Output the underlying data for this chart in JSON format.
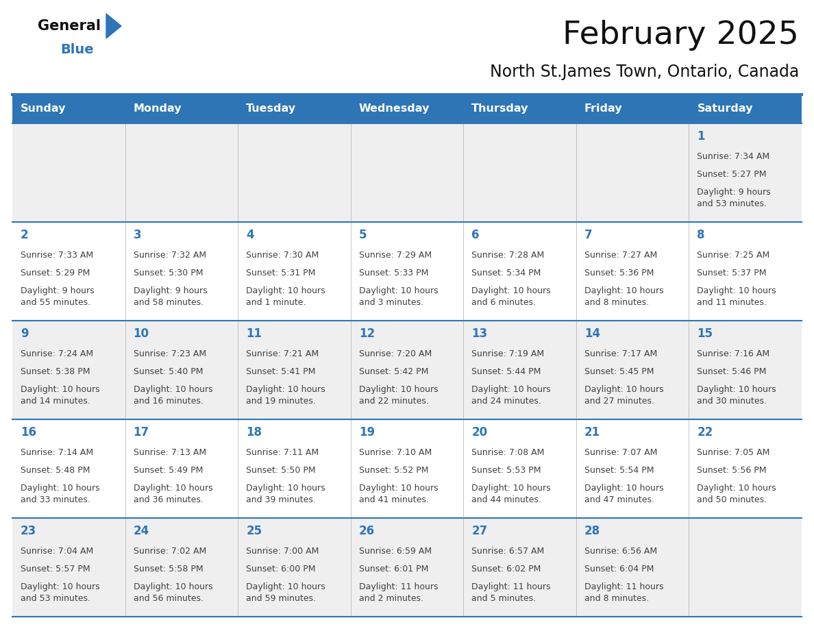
{
  "title": "February 2025",
  "subtitle": "North St.James Town, Ontario, Canada",
  "header_bg": "#2E75B6",
  "header_text_color": "#FFFFFF",
  "cell_bg_odd": "#EFEFEF",
  "cell_bg_even": "#FFFFFF",
  "text_color": "#404040",
  "day_number_color": "#2E75B6",
  "border_color": "#2E75B6",
  "days_of_week": [
    "Sunday",
    "Monday",
    "Tuesday",
    "Wednesday",
    "Thursday",
    "Friday",
    "Saturday"
  ],
  "fig_width": 11.88,
  "fig_height": 9.18,
  "weeks": [
    [
      {
        "day": "",
        "sunrise": "",
        "sunset": "",
        "daylight": ""
      },
      {
        "day": "",
        "sunrise": "",
        "sunset": "",
        "daylight": ""
      },
      {
        "day": "",
        "sunrise": "",
        "sunset": "",
        "daylight": ""
      },
      {
        "day": "",
        "sunrise": "",
        "sunset": "",
        "daylight": ""
      },
      {
        "day": "",
        "sunrise": "",
        "sunset": "",
        "daylight": ""
      },
      {
        "day": "",
        "sunrise": "",
        "sunset": "",
        "daylight": ""
      },
      {
        "day": "1",
        "sunrise": "Sunrise: 7:34 AM",
        "sunset": "Sunset: 5:27 PM",
        "daylight": "Daylight: 9 hours\nand 53 minutes."
      }
    ],
    [
      {
        "day": "2",
        "sunrise": "Sunrise: 7:33 AM",
        "sunset": "Sunset: 5:29 PM",
        "daylight": "Daylight: 9 hours\nand 55 minutes."
      },
      {
        "day": "3",
        "sunrise": "Sunrise: 7:32 AM",
        "sunset": "Sunset: 5:30 PM",
        "daylight": "Daylight: 9 hours\nand 58 minutes."
      },
      {
        "day": "4",
        "sunrise": "Sunrise: 7:30 AM",
        "sunset": "Sunset: 5:31 PM",
        "daylight": "Daylight: 10 hours\nand 1 minute."
      },
      {
        "day": "5",
        "sunrise": "Sunrise: 7:29 AM",
        "sunset": "Sunset: 5:33 PM",
        "daylight": "Daylight: 10 hours\nand 3 minutes."
      },
      {
        "day": "6",
        "sunrise": "Sunrise: 7:28 AM",
        "sunset": "Sunset: 5:34 PM",
        "daylight": "Daylight: 10 hours\nand 6 minutes."
      },
      {
        "day": "7",
        "sunrise": "Sunrise: 7:27 AM",
        "sunset": "Sunset: 5:36 PM",
        "daylight": "Daylight: 10 hours\nand 8 minutes."
      },
      {
        "day": "8",
        "sunrise": "Sunrise: 7:25 AM",
        "sunset": "Sunset: 5:37 PM",
        "daylight": "Daylight: 10 hours\nand 11 minutes."
      }
    ],
    [
      {
        "day": "9",
        "sunrise": "Sunrise: 7:24 AM",
        "sunset": "Sunset: 5:38 PM",
        "daylight": "Daylight: 10 hours\nand 14 minutes."
      },
      {
        "day": "10",
        "sunrise": "Sunrise: 7:23 AM",
        "sunset": "Sunset: 5:40 PM",
        "daylight": "Daylight: 10 hours\nand 16 minutes."
      },
      {
        "day": "11",
        "sunrise": "Sunrise: 7:21 AM",
        "sunset": "Sunset: 5:41 PM",
        "daylight": "Daylight: 10 hours\nand 19 minutes."
      },
      {
        "day": "12",
        "sunrise": "Sunrise: 7:20 AM",
        "sunset": "Sunset: 5:42 PM",
        "daylight": "Daylight: 10 hours\nand 22 minutes."
      },
      {
        "day": "13",
        "sunrise": "Sunrise: 7:19 AM",
        "sunset": "Sunset: 5:44 PM",
        "daylight": "Daylight: 10 hours\nand 24 minutes."
      },
      {
        "day": "14",
        "sunrise": "Sunrise: 7:17 AM",
        "sunset": "Sunset: 5:45 PM",
        "daylight": "Daylight: 10 hours\nand 27 minutes."
      },
      {
        "day": "15",
        "sunrise": "Sunrise: 7:16 AM",
        "sunset": "Sunset: 5:46 PM",
        "daylight": "Daylight: 10 hours\nand 30 minutes."
      }
    ],
    [
      {
        "day": "16",
        "sunrise": "Sunrise: 7:14 AM",
        "sunset": "Sunset: 5:48 PM",
        "daylight": "Daylight: 10 hours\nand 33 minutes."
      },
      {
        "day": "17",
        "sunrise": "Sunrise: 7:13 AM",
        "sunset": "Sunset: 5:49 PM",
        "daylight": "Daylight: 10 hours\nand 36 minutes."
      },
      {
        "day": "18",
        "sunrise": "Sunrise: 7:11 AM",
        "sunset": "Sunset: 5:50 PM",
        "daylight": "Daylight: 10 hours\nand 39 minutes."
      },
      {
        "day": "19",
        "sunrise": "Sunrise: 7:10 AM",
        "sunset": "Sunset: 5:52 PM",
        "daylight": "Daylight: 10 hours\nand 41 minutes."
      },
      {
        "day": "20",
        "sunrise": "Sunrise: 7:08 AM",
        "sunset": "Sunset: 5:53 PM",
        "daylight": "Daylight: 10 hours\nand 44 minutes."
      },
      {
        "day": "21",
        "sunrise": "Sunrise: 7:07 AM",
        "sunset": "Sunset: 5:54 PM",
        "daylight": "Daylight: 10 hours\nand 47 minutes."
      },
      {
        "day": "22",
        "sunrise": "Sunrise: 7:05 AM",
        "sunset": "Sunset: 5:56 PM",
        "daylight": "Daylight: 10 hours\nand 50 minutes."
      }
    ],
    [
      {
        "day": "23",
        "sunrise": "Sunrise: 7:04 AM",
        "sunset": "Sunset: 5:57 PM",
        "daylight": "Daylight: 10 hours\nand 53 minutes."
      },
      {
        "day": "24",
        "sunrise": "Sunrise: 7:02 AM",
        "sunset": "Sunset: 5:58 PM",
        "daylight": "Daylight: 10 hours\nand 56 minutes."
      },
      {
        "day": "25",
        "sunrise": "Sunrise: 7:00 AM",
        "sunset": "Sunset: 6:00 PM",
        "daylight": "Daylight: 10 hours\nand 59 minutes."
      },
      {
        "day": "26",
        "sunrise": "Sunrise: 6:59 AM",
        "sunset": "Sunset: 6:01 PM",
        "daylight": "Daylight: 11 hours\nand 2 minutes."
      },
      {
        "day": "27",
        "sunrise": "Sunrise: 6:57 AM",
        "sunset": "Sunset: 6:02 PM",
        "daylight": "Daylight: 11 hours\nand 5 minutes."
      },
      {
        "day": "28",
        "sunrise": "Sunrise: 6:56 AM",
        "sunset": "Sunset: 6:04 PM",
        "daylight": "Daylight: 11 hours\nand 8 minutes."
      },
      {
        "day": "",
        "sunrise": "",
        "sunset": "",
        "daylight": ""
      }
    ]
  ]
}
